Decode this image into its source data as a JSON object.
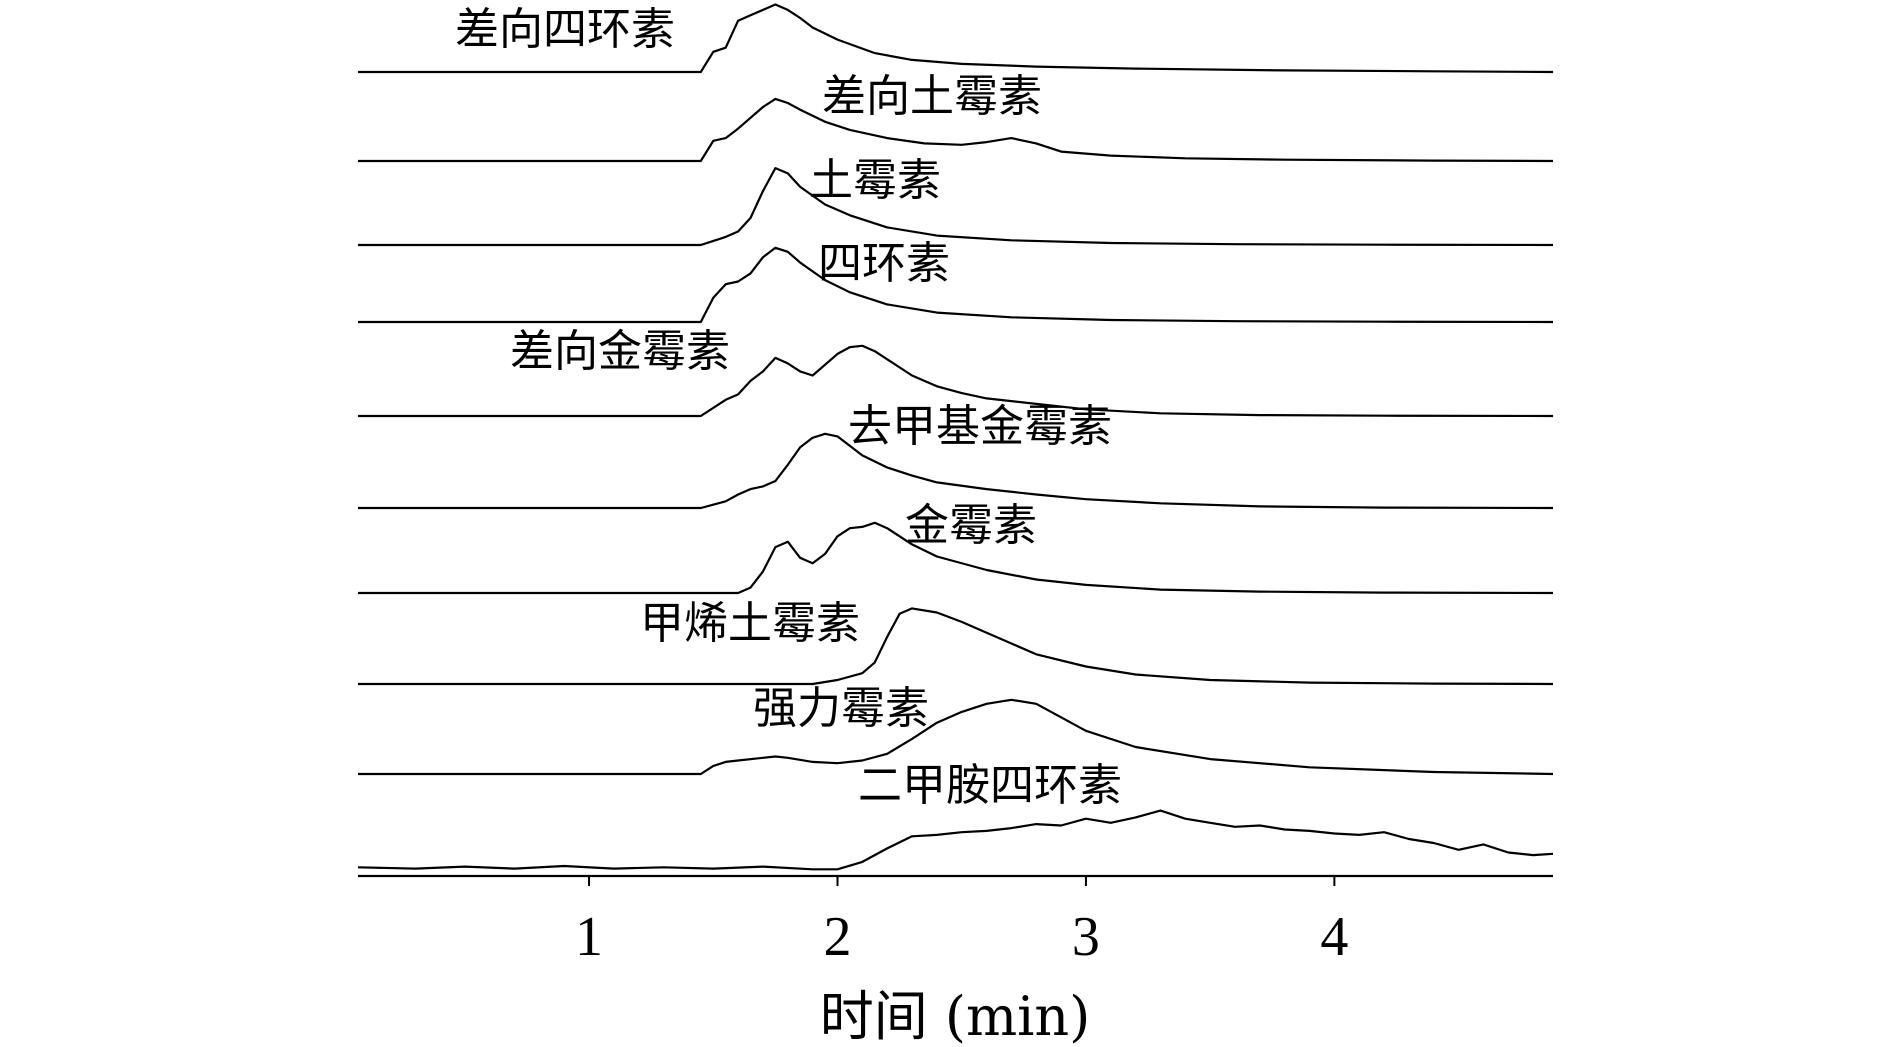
{
  "chart_data": {
    "type": "line",
    "xlabel": "时间 (min)",
    "ylabel": "",
    "xlim": [
      0.07,
      4.88
    ],
    "xticks": [
      1,
      2,
      3,
      4
    ],
    "xtick_labels": [
      "1",
      "2",
      "3",
      "4"
    ],
    "series": [
      {
        "name": "差向四环素",
        "x": [
          0.07,
          1.45,
          1.5,
          1.55,
          1.6,
          1.65,
          1.7,
          1.75,
          1.8,
          1.85,
          1.9,
          2.0,
          2.15,
          2.3,
          2.5,
          2.8,
          3.2,
          3.8,
          4.4,
          4.88
        ],
        "y": [
          0,
          0,
          1.5,
          1.8,
          3.8,
          4.2,
          4.6,
          5.0,
          4.6,
          4.0,
          3.3,
          2.4,
          1.4,
          0.9,
          0.6,
          0.4,
          0.25,
          0.12,
          0.05,
          0
        ]
      },
      {
        "name": "差向土霉素",
        "x": [
          0.07,
          1.45,
          1.5,
          1.55,
          1.6,
          1.65,
          1.7,
          1.75,
          1.8,
          1.85,
          1.95,
          2.05,
          2.2,
          2.35,
          2.5,
          2.6,
          2.7,
          2.8,
          2.9,
          3.1,
          3.4,
          3.8,
          4.4,
          4.88
        ],
        "y": [
          0,
          0,
          1.5,
          1.7,
          2.4,
          3.2,
          4.0,
          4.6,
          4.3,
          3.8,
          2.9,
          2.3,
          1.7,
          1.3,
          1.2,
          1.4,
          1.7,
          1.3,
          0.7,
          0.4,
          0.2,
          0.1,
          0.03,
          0
        ]
      },
      {
        "name": "土霉素",
        "x": [
          0.07,
          1.45,
          1.5,
          1.55,
          1.6,
          1.65,
          1.7,
          1.75,
          1.8,
          1.85,
          1.95,
          2.05,
          2.2,
          2.4,
          2.7,
          3.1,
          3.6,
          4.2,
          4.88
        ],
        "y": [
          0,
          0,
          0.3,
          0.6,
          1.0,
          2.0,
          4.0,
          5.7,
          5.3,
          4.3,
          3.0,
          2.2,
          1.3,
          0.7,
          0.35,
          0.15,
          0.06,
          0.02,
          0
        ]
      },
      {
        "name": "四环素",
        "x": [
          0.07,
          1.45,
          1.5,
          1.55,
          1.6,
          1.65,
          1.7,
          1.75,
          1.8,
          1.85,
          1.95,
          2.05,
          2.2,
          2.4,
          2.7,
          3.1,
          3.6,
          4.2,
          4.88
        ],
        "y": [
          0,
          0,
          1.8,
          2.8,
          3.0,
          3.6,
          4.8,
          5.5,
          5.2,
          4.4,
          3.1,
          2.2,
          1.3,
          0.7,
          0.35,
          0.15,
          0.06,
          0.02,
          0
        ]
      },
      {
        "name": "差向金霉素",
        "x": [
          0.07,
          1.45,
          1.55,
          1.6,
          1.65,
          1.7,
          1.75,
          1.8,
          1.85,
          1.9,
          1.95,
          2.0,
          2.05,
          2.1,
          2.15,
          2.2,
          2.3,
          2.4,
          2.5,
          2.6,
          2.8,
          3.0,
          3.3,
          3.7,
          4.2,
          4.88
        ],
        "y": [
          0,
          0,
          1.2,
          1.6,
          2.6,
          3.3,
          4.3,
          3.9,
          3.3,
          3.0,
          3.8,
          4.6,
          5.1,
          5.2,
          4.8,
          4.2,
          3.0,
          2.2,
          1.7,
          1.3,
          0.9,
          0.5,
          0.2,
          0.07,
          0.02,
          0
        ]
      },
      {
        "name": "去甲基金霉素",
        "x": [
          0.07,
          1.45,
          1.55,
          1.6,
          1.65,
          1.7,
          1.75,
          1.8,
          1.85,
          1.9,
          1.95,
          2.0,
          2.05,
          2.1,
          2.2,
          2.3,
          2.4,
          2.6,
          2.8,
          3.0,
          3.3,
          3.7,
          4.2,
          4.88
        ],
        "y": [
          0,
          0,
          0.5,
          1.0,
          1.4,
          1.6,
          2.0,
          3.2,
          4.5,
          5.2,
          5.5,
          5.3,
          4.6,
          3.9,
          3.0,
          2.4,
          1.9,
          1.4,
          1.0,
          0.65,
          0.35,
          0.12,
          0.03,
          0
        ]
      },
      {
        "name": "金霉素",
        "x": [
          0.07,
          1.6,
          1.65,
          1.7,
          1.75,
          1.8,
          1.85,
          1.9,
          1.95,
          2.0,
          2.05,
          2.1,
          2.15,
          2.2,
          2.3,
          2.4,
          2.6,
          2.8,
          3.0,
          3.3,
          3.7,
          4.2,
          4.88
        ],
        "y": [
          0,
          0,
          0.4,
          1.6,
          3.4,
          3.8,
          2.6,
          2.2,
          2.9,
          4.2,
          4.8,
          4.9,
          5.2,
          4.8,
          3.6,
          2.7,
          1.7,
          1.0,
          0.6,
          0.25,
          0.1,
          0.03,
          0
        ]
      },
      {
        "name": "甲烯土霉素",
        "x": [
          0.07,
          1.9,
          2.0,
          2.1,
          2.15,
          2.2,
          2.25,
          2.3,
          2.4,
          2.5,
          2.6,
          2.7,
          2.8,
          3.0,
          3.2,
          3.5,
          3.9,
          4.4,
          4.88
        ],
        "y": [
          0,
          0,
          0.3,
          0.8,
          1.6,
          3.5,
          5.2,
          5.6,
          5.3,
          4.6,
          3.8,
          3.0,
          2.2,
          1.3,
          0.7,
          0.3,
          0.1,
          0.03,
          0
        ]
      },
      {
        "name": "强力霉素",
        "x": [
          0.07,
          1.45,
          1.5,
          1.55,
          1.6,
          1.7,
          1.75,
          1.8,
          1.9,
          2.0,
          2.1,
          2.2,
          2.3,
          2.4,
          2.5,
          2.6,
          2.7,
          2.8,
          2.9,
          3.0,
          3.2,
          3.5,
          3.9,
          4.4,
          4.88
        ],
        "y": [
          0,
          0,
          0.6,
          0.9,
          1.0,
          1.2,
          1.3,
          1.2,
          0.9,
          0.8,
          1.0,
          1.5,
          2.6,
          3.8,
          4.6,
          5.2,
          5.5,
          5.2,
          4.2,
          3.2,
          2.0,
          1.1,
          0.5,
          0.15,
          0
        ]
      },
      {
        "name": "二甲胺四环素",
        "x": [
          0.07,
          0.3,
          0.5,
          0.7,
          0.9,
          1.1,
          1.3,
          1.5,
          1.7,
          1.9,
          2.0,
          2.1,
          2.2,
          2.3,
          2.4,
          2.5,
          2.6,
          2.7,
          2.8,
          2.9,
          3.0,
          3.1,
          3.2,
          3.3,
          3.4,
          3.5,
          3.6,
          3.7,
          3.8,
          3.9,
          4.0,
          4.1,
          4.2,
          4.3,
          4.4,
          4.5,
          4.6,
          4.7,
          4.8,
          4.88
        ],
        "y": [
          0.2,
          0.1,
          0.25,
          0.1,
          0.3,
          0.1,
          0.2,
          0.1,
          0.25,
          0.05,
          0.05,
          0.6,
          1.6,
          2.5,
          2.6,
          2.8,
          2.9,
          3.1,
          3.4,
          3.3,
          3.8,
          3.5,
          3.9,
          4.4,
          3.8,
          3.5,
          3.2,
          3.3,
          3.0,
          2.9,
          2.7,
          2.6,
          2.8,
          2.3,
          2.0,
          1.5,
          1.9,
          1.3,
          1.1,
          1.2
        ]
      }
    ]
  }
}
